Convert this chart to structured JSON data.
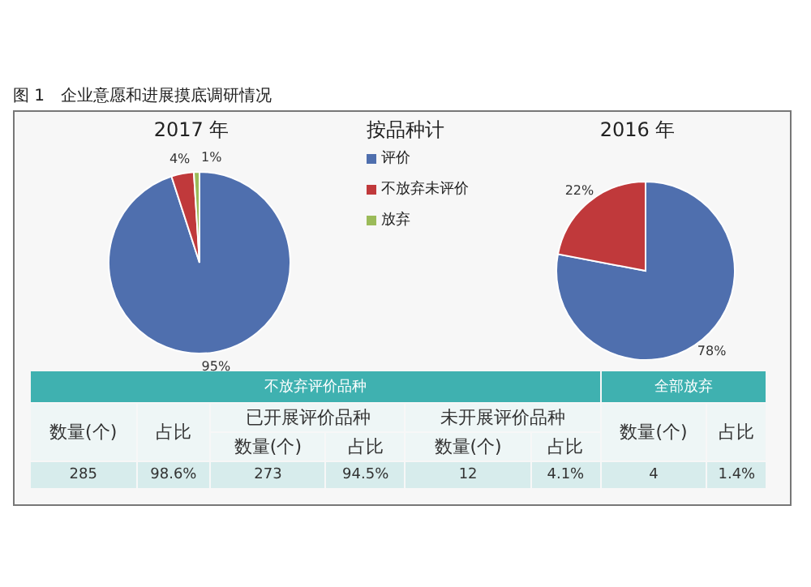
{
  "chart_data": [
    {
      "type": "pie",
      "title": "2017 年",
      "annotations": [
        "图 1　企业意愿和进展摸底调研情况"
      ],
      "legend": "right",
      "legend_title": "按品种计",
      "categories": [
        "评价",
        "不放弃未评价",
        "放弃"
      ],
      "values": [
        95,
        4,
        1
      ],
      "value_labels": [
        "95%",
        "4%",
        "1%"
      ],
      "colors": [
        "#4f6fae",
        "#c0393b",
        "#9bbb59"
      ]
    },
    {
      "type": "pie",
      "title": "2016 年",
      "categories": [
        null,
        null
      ],
      "values": [
        78,
        22
      ],
      "value_labels": [
        "78%",
        "22%"
      ],
      "colors": [
        "#4f6fae",
        "#c0393b"
      ]
    },
    {
      "type": "other",
      "annotations": [
        "不放弃评价品种",
        "全部放弃",
        "数量(个)",
        "占比",
        "已开展评价品种",
        "未开展评价品种",
        "数量(个)",
        "占比",
        "数量(个)",
        "占比",
        "数量(个)",
        "占比",
        "285",
        "98.6%",
        "273",
        "94.5%",
        "12",
        "4.1%",
        "4",
        "1.4%"
      ]
    }
  ]
}
